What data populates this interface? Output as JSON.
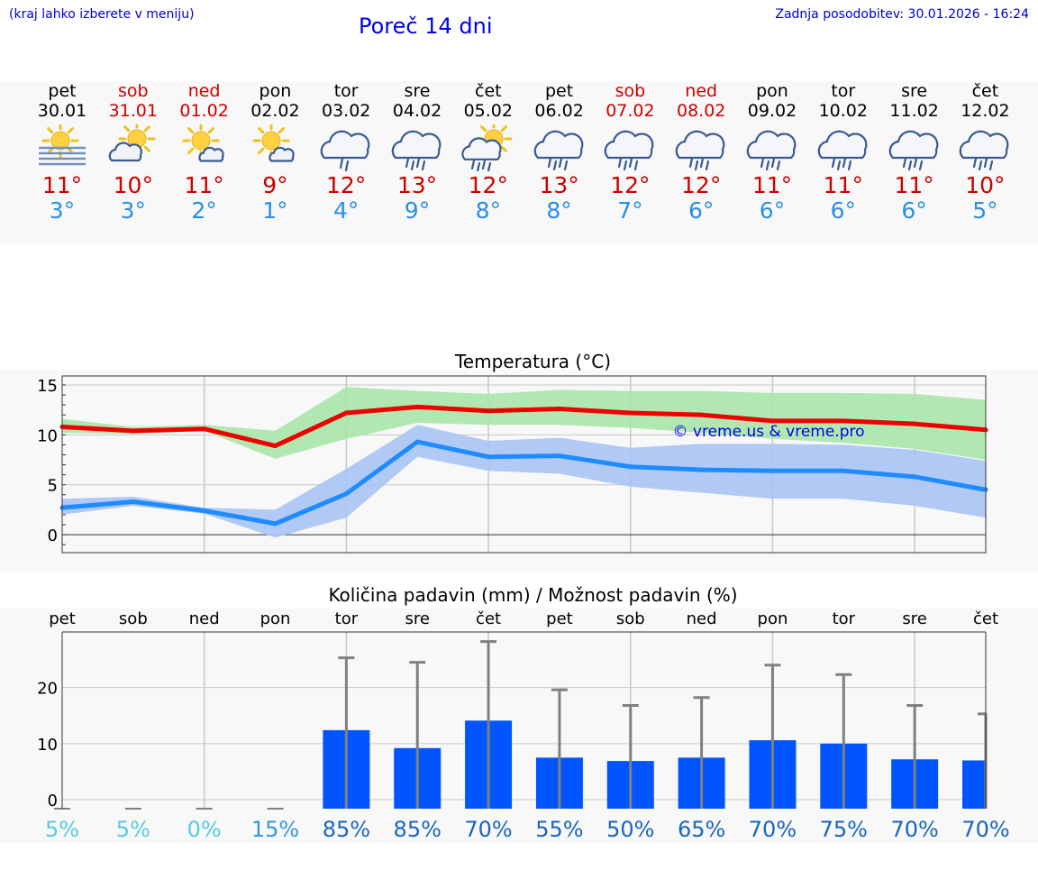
{
  "header": {
    "hint": "(kraj lahko izberete v meniju)",
    "title": "Poreč 14 dni",
    "updated": "Zadnja posodobitev: 30.01.2026 - 16:24"
  },
  "forecast": [
    {
      "day": "pet",
      "date": "30.01",
      "weekend": false,
      "icon": "sun-fog-icon",
      "tmax": "11°",
      "tmin": "3°"
    },
    {
      "day": "sob",
      "date": "31.01",
      "weekend": true,
      "icon": "sun-cloud-icon",
      "tmax": "10°",
      "tmin": "3°"
    },
    {
      "day": "ned",
      "date": "01.02",
      "weekend": true,
      "icon": "sun-small-cloud-icon",
      "tmax": "11°",
      "tmin": "2°"
    },
    {
      "day": "pon",
      "date": "02.02",
      "weekend": false,
      "icon": "sun-small-cloud-icon",
      "tmax": "9°",
      "tmin": "1°"
    },
    {
      "day": "tor",
      "date": "03.02",
      "weekend": false,
      "icon": "cloud-rain-icon",
      "tmax": "12°",
      "tmin": "4°"
    },
    {
      "day": "sre",
      "date": "04.02",
      "weekend": false,
      "icon": "cloud-heavy-rain-icon",
      "tmax": "13°",
      "tmin": "9°"
    },
    {
      "day": "čet",
      "date": "05.02",
      "weekend": false,
      "icon": "sun-rain-icon",
      "tmax": "12°",
      "tmin": "8°"
    },
    {
      "day": "pet",
      "date": "06.02",
      "weekend": false,
      "icon": "cloud-heavy-rain-icon",
      "tmax": "13°",
      "tmin": "8°"
    },
    {
      "day": "sob",
      "date": "07.02",
      "weekend": true,
      "icon": "cloud-heavy-rain-icon",
      "tmax": "12°",
      "tmin": "7°"
    },
    {
      "day": "ned",
      "date": "08.02",
      "weekend": true,
      "icon": "cloud-heavy-rain-icon",
      "tmax": "12°",
      "tmin": "6°"
    },
    {
      "day": "pon",
      "date": "09.02",
      "weekend": false,
      "icon": "cloud-heavy-rain-icon",
      "tmax": "11°",
      "tmin": "6°"
    },
    {
      "day": "tor",
      "date": "10.02",
      "weekend": false,
      "icon": "cloud-heavy-rain-icon",
      "tmax": "11°",
      "tmin": "6°"
    },
    {
      "day": "sre",
      "date": "11.02",
      "weekend": false,
      "icon": "cloud-heavy-rain-icon",
      "tmax": "11°",
      "tmin": "6°"
    },
    {
      "day": "čet",
      "date": "12.02",
      "weekend": false,
      "icon": "cloud-heavy-rain-icon",
      "tmax": "10°",
      "tmin": "5°"
    }
  ],
  "colors": {
    "weekday": "#000000",
    "weekend": "#cc0000",
    "max_line": "#ee0000",
    "min_line": "#1e8cff",
    "max_band": "#a8e6a8",
    "min_band": "#a8c4f4",
    "bar": "#0055ff",
    "error": "#808080",
    "pct_low": "#55cce0",
    "pct_mid": "#3399dd",
    "pct_high": "#1a66bb"
  },
  "chart_data": [
    {
      "type": "line",
      "title": "Temperatura (°C)",
      "watermark": "© vreme.us & vreme.pro",
      "ylim": [
        -1.8,
        15.9
      ],
      "yticks": [
        0,
        5,
        10,
        15
      ],
      "x": [
        0,
        1,
        2,
        3,
        4,
        5,
        6,
        7,
        8,
        9,
        10,
        11,
        12,
        13
      ],
      "series": [
        {
          "name": "max",
          "values": [
            10.8,
            10.4,
            10.6,
            8.9,
            12.2,
            12.8,
            12.4,
            12.6,
            12.2,
            12.0,
            11.4,
            11.4,
            11.1,
            10.5
          ],
          "band_low": [
            10.2,
            10.1,
            10.4,
            7.6,
            9.6,
            11.2,
            11.0,
            11.0,
            10.7,
            10.2,
            9.6,
            9.2,
            8.6,
            7.5
          ],
          "band_high": [
            11.6,
            10.8,
            11.0,
            10.4,
            14.8,
            14.4,
            14.1,
            14.5,
            14.4,
            14.4,
            14.2,
            14.2,
            14.1,
            13.5
          ]
        },
        {
          "name": "min",
          "values": [
            2.7,
            3.3,
            2.4,
            1.1,
            4.1,
            9.3,
            7.8,
            7.9,
            6.8,
            6.5,
            6.4,
            6.4,
            5.8,
            4.5
          ],
          "band_low": [
            2.0,
            2.9,
            2.1,
            -0.3,
            1.7,
            7.8,
            6.4,
            6.1,
            4.8,
            4.2,
            3.6,
            3.6,
            2.9,
            1.7
          ],
          "band_high": [
            3.6,
            3.8,
            2.7,
            2.5,
            6.6,
            11.0,
            9.4,
            9.7,
            8.7,
            9.1,
            9.1,
            9.0,
            8.5,
            7.4
          ]
        }
      ]
    },
    {
      "type": "bar",
      "title": "Količina padavin (mm) / Možnost padavin (%)",
      "categories": [
        "pet",
        "sob",
        "ned",
        "pon",
        "tor",
        "sre",
        "čet",
        "pet",
        "sob",
        "ned",
        "pon",
        "tor",
        "sre",
        "čet"
      ],
      "ylim": [
        -1.6,
        29.9
      ],
      "yticks": [
        0,
        10,
        20
      ],
      "values": [
        0,
        0,
        0,
        0,
        12.4,
        9.2,
        14.1,
        7.5,
        6.9,
        7.5,
        10.6,
        10.0,
        7.2,
        7.0
      ],
      "error_high": [
        0,
        0,
        0,
        0,
        25.3,
        24.5,
        28.2,
        19.6,
        16.8,
        18.2,
        24.0,
        22.3,
        16.8,
        15.3
      ],
      "probability": [
        "5%",
        "5%",
        "0%",
        "15%",
        "85%",
        "85%",
        "70%",
        "55%",
        "50%",
        "65%",
        "70%",
        "75%",
        "70%",
        "70%"
      ]
    }
  ]
}
